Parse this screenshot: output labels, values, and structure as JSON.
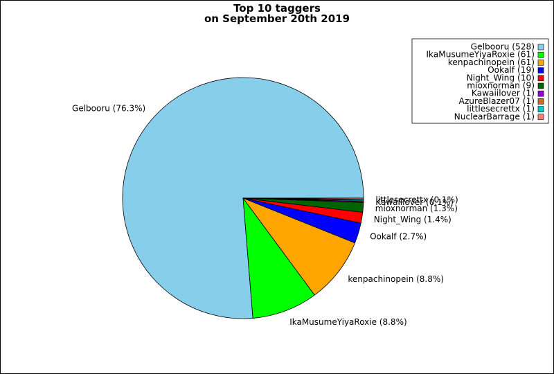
{
  "chart_data": {
    "type": "pie",
    "title": "Top 10 taggers\non September 20th 2019",
    "slices": [
      {
        "name": "Gelbooru",
        "count": 528,
        "percent": "76.3%",
        "color": "#87ceeb"
      },
      {
        "name": "IkaMusumeYiyaRoxie",
        "count": 61,
        "percent": "8.8%",
        "color": "#00ff00"
      },
      {
        "name": "kenpachinopein",
        "count": 61,
        "percent": "8.8%",
        "color": "#ffa500"
      },
      {
        "name": "Ookalf",
        "count": 19,
        "percent": "2.7%",
        "color": "#0000ff"
      },
      {
        "name": "Night_Wing",
        "count": 10,
        "percent": "1.4%",
        "color": "#ff0000"
      },
      {
        "name": "mioxnorman",
        "count": 9,
        "percent": "1.3%",
        "color": "#006400"
      },
      {
        "name": "Kawaiilover",
        "count": 1,
        "percent": "0.1%",
        "color": "#9400d3"
      },
      {
        "name": "AzureBlazer07",
        "count": 1,
        "percent": "0.1%",
        "color": "#d2691e"
      },
      {
        "name": "littlesecrettx",
        "count": 1,
        "percent": "0.1%",
        "color": "#00ced1"
      },
      {
        "name": "NuclearBarrage",
        "count": 1,
        "percent": "0.1%",
        "color": "#fa8072"
      }
    ],
    "visible_slice_labels": [
      "Gelbooru",
      "IkaMusumeYiyaRoxie",
      "kenpachinopein",
      "Ookalf",
      "Night_Wing",
      "mioxnorman",
      "Kawaiilover",
      "littlesecrettx"
    ],
    "legend_placement": "top-right",
    "start": "counterclockwise from 3 o'clock"
  }
}
